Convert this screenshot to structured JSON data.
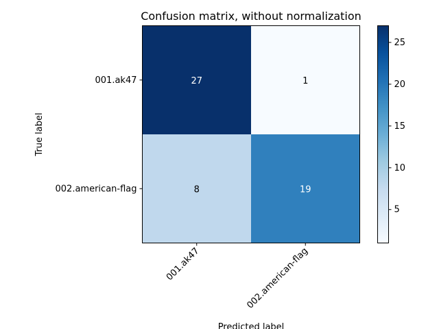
{
  "chart_data": {
    "type": "heatmap",
    "title": "Confusion matrix, without normalization",
    "xlabel": "Predicted label",
    "ylabel": "True label",
    "x_categories": [
      "001.ak47",
      "002.american-flag"
    ],
    "y_categories": [
      "001.ak47",
      "002.american-flag"
    ],
    "values": [
      [
        27,
        1
      ],
      [
        8,
        19
      ]
    ],
    "colorbar": {
      "colormap": "Blues",
      "range": [
        1,
        27
      ],
      "ticks": [
        5,
        10,
        15,
        20,
        25
      ]
    },
    "grid": false
  }
}
